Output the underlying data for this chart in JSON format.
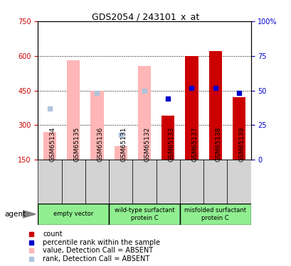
{
  "title": "GDS2054 / 243101_x_at",
  "samples": [
    "GSM65134",
    "GSM65135",
    "GSM65136",
    "GSM65131",
    "GSM65132",
    "GSM65133",
    "GSM65137",
    "GSM65138",
    "GSM65139"
  ],
  "absent_value": [
    270,
    580,
    450,
    210,
    555,
    null,
    null,
    null,
    null
  ],
  "absent_rank_pct": [
    37,
    null,
    48,
    18,
    50,
    null,
    null,
    null,
    null
  ],
  "present_value": [
    null,
    null,
    null,
    null,
    null,
    340,
    600,
    620,
    420
  ],
  "present_rank_pct": [
    null,
    null,
    null,
    null,
    null,
    44,
    52,
    52,
    48
  ],
  "ylim_left": [
    150,
    750
  ],
  "ylim_right": [
    0,
    100
  ],
  "yticks_left": [
    150,
    300,
    450,
    600,
    750
  ],
  "yticks_right": [
    0,
    25,
    50,
    75,
    100
  ],
  "absent_bar_color": "#ffb6b6",
  "absent_rank_color": "#b0c4de",
  "present_bar_color": "#cc0000",
  "present_rank_color": "#0000cc",
  "left_axis_color": "#cc0000",
  "right_axis_color": "#0000cc",
  "group_color": "#90ee90",
  "sample_box_color": "#d3d3d3",
  "background_color": "#ffffff",
  "group_boundaries": [
    [
      0,
      2,
      "empty vector"
    ],
    [
      3,
      5,
      "wild-type surfactant\nprotein C"
    ],
    [
      6,
      8,
      "misfolded surfactant\nprotein C"
    ]
  ]
}
